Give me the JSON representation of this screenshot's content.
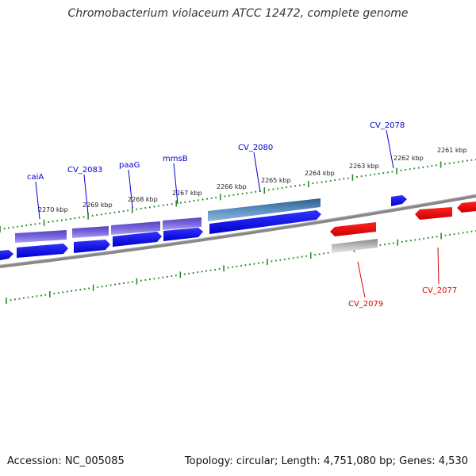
{
  "title": "Chromobacterium violaceum ATCC 12472, complete genome",
  "accession": "Accession: NC_005085",
  "summary": "Topology: circular; Length: 4,751,080 bp; Genes: 4,530",
  "colors": {
    "forward_cds": "#0000ee",
    "forward_gene": "#6655cc",
    "highlight_gene": "#4a7fb0",
    "reverse_cds": "#ee0000",
    "pseudo_gene": "#bbbbbb",
    "tick": "#2a8a2a",
    "backbone": "#888888",
    "forward_label": "#0000cc",
    "reverse_label": "#dd0000"
  },
  "scale_labels": [
    "2270 kbp",
    "2269 kbp",
    "2268 kbp",
    "2267 kbp",
    "2266 kbp",
    "2265 kbp",
    "2264 kbp",
    "2263 kbp",
    "2262 kbp",
    "2261 kbp"
  ],
  "forward_labels": [
    "caiA",
    "CV_2083",
    "paaG",
    "mmsB",
    "CV_2080",
    "CV_2078"
  ],
  "reverse_labels": [
    "CV_2079",
    "CV_2077"
  ]
}
